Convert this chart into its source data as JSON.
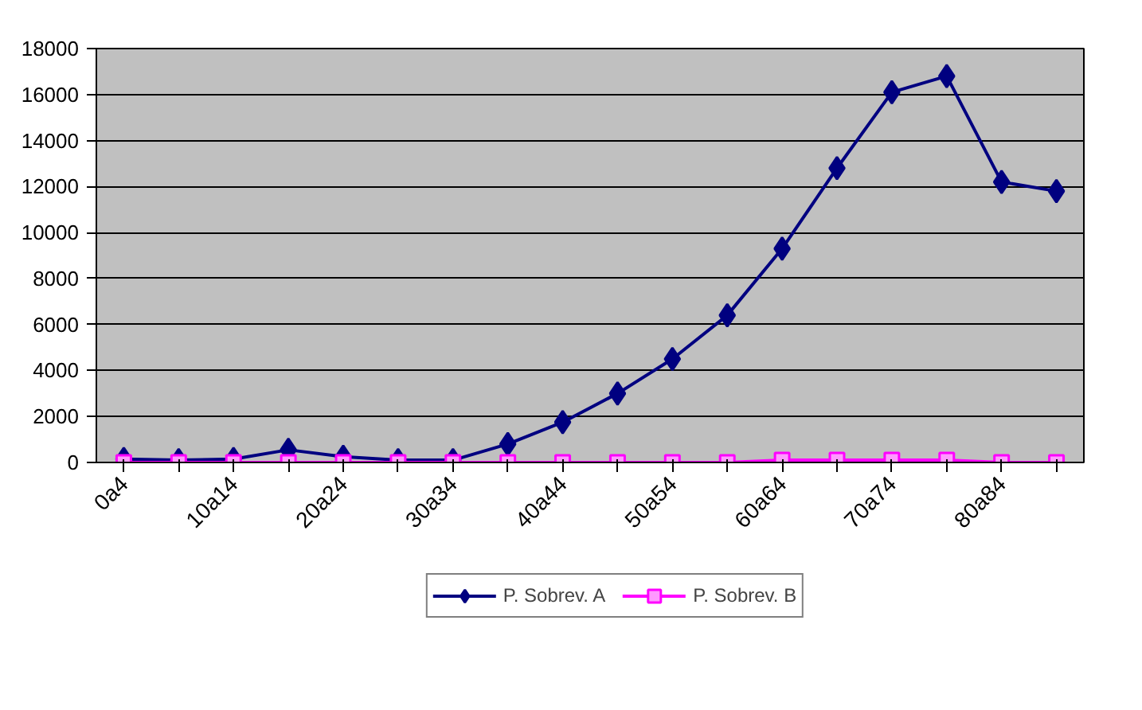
{
  "chart_data": {
    "type": "line",
    "categories": [
      "0a4",
      null,
      "10a14",
      null,
      "20a24",
      null,
      "30a34",
      null,
      "40a44",
      null,
      "50a54",
      null,
      "60a64",
      null,
      "70a74",
      null,
      "80a84",
      null
    ],
    "series": [
      {
        "name": "P. Sobrev. A",
        "color": "#000080",
        "marker": "diamond",
        "values": [
          150,
          100,
          150,
          550,
          250,
          100,
          100,
          800,
          1750,
          3000,
          4500,
          6400,
          9300,
          12800,
          16100,
          16800,
          12200,
          11800
        ]
      },
      {
        "name": "P. Sobrev. B",
        "color": "#ff00ff",
        "marker": "square",
        "values": [
          0,
          0,
          0,
          0,
          0,
          0,
          0,
          0,
          0,
          0,
          0,
          0,
          100,
          100,
          100,
          100,
          0,
          0
        ]
      }
    ],
    "ylim": [
      0,
      18000
    ],
    "yticks": [
      0,
      2000,
      4000,
      6000,
      8000,
      10000,
      12000,
      14000,
      16000,
      18000
    ],
    "grid": "y",
    "legend": "bottom",
    "line_style": "solid"
  }
}
